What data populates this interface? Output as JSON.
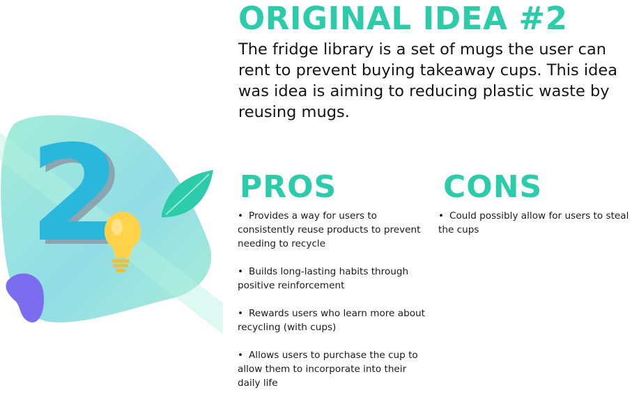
{
  "heading": {
    "title": "ORIGINAL IDEA #2",
    "description": "The fridge library is a set of mugs the user can rent to prevent buying takeaway cups. This idea was idea is aiming to reducing plastic waste by reusing mugs."
  },
  "illustration": {
    "numeral": "2",
    "colors": {
      "blob_light": "#9ee8d6",
      "blob_blue": "#8fd8ea",
      "numeral": "#29b7dc",
      "numeral_shadow": "#8a9ba8",
      "leaf": "#2ccba9",
      "bulb": "#ffd24a",
      "purple": "#7b6cf0"
    }
  },
  "pros": {
    "heading": "PROS",
    "bullet": "•",
    "items": [
      "Provides a way for users to consistently reuse products to prevent needing to recycle",
      "Builds long-lasting habits through positive reinforcement",
      "Rewards users who learn more about recycling (with cups)",
      "Allows users to purchase the cup to allow them to incorporate into their daily life"
    ]
  },
  "cons": {
    "heading": "CONS",
    "bullet": "•",
    "items": [
      "Could possibly allow for users to steal the cups"
    ]
  },
  "colors": {
    "accent": "#2ccba9",
    "text": "#151515"
  }
}
